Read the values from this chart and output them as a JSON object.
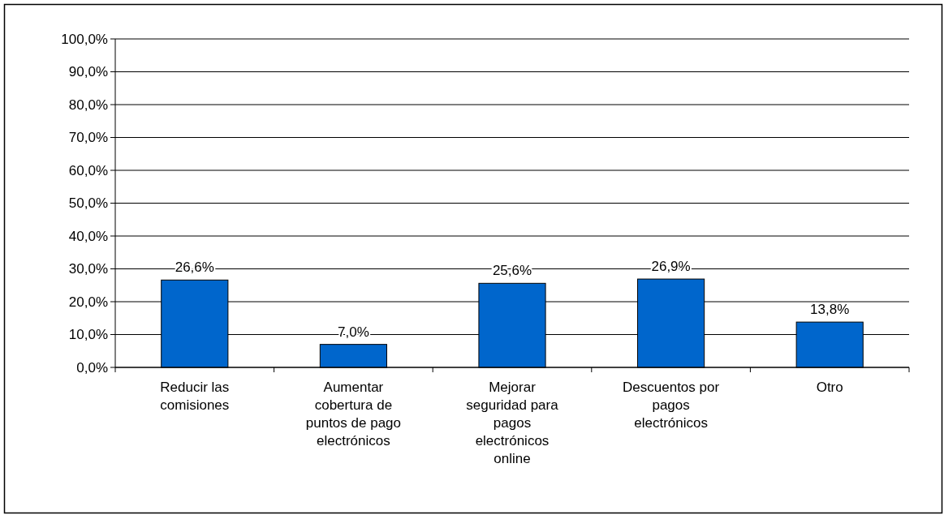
{
  "chart_data": {
    "type": "bar",
    "categories": [
      "Reducir las comisiones",
      "Aumentar cobertura de puntos de pago electrónicos",
      "Mejorar seguridad para pagos electrónicos online",
      "Descuentos por pagos electrónicos",
      "Otro"
    ],
    "values": [
      26.6,
      7.0,
      25.6,
      26.9,
      13.8
    ],
    "value_labels": [
      "26,6%",
      "7,0%",
      "25,6%",
      "26,9%",
      "13,8%"
    ],
    "color": "#0066cc",
    "ylim": [
      0,
      100
    ],
    "yticks": [
      {
        "value": 0,
        "label": "0,0%"
      },
      {
        "value": 10,
        "label": "10,0%"
      },
      {
        "value": 20,
        "label": "20,0%"
      },
      {
        "value": 30,
        "label": "30,0%"
      },
      {
        "value": 40,
        "label": "40,0%"
      },
      {
        "value": 50,
        "label": "50,0%"
      },
      {
        "value": 60,
        "label": "60,0%"
      },
      {
        "value": 70,
        "label": "70,0%"
      },
      {
        "value": 80,
        "label": "80,0%"
      },
      {
        "value": 90,
        "label": "90,0%"
      },
      {
        "value": 100,
        "label": "100,0%"
      }
    ],
    "grid": "y"
  }
}
